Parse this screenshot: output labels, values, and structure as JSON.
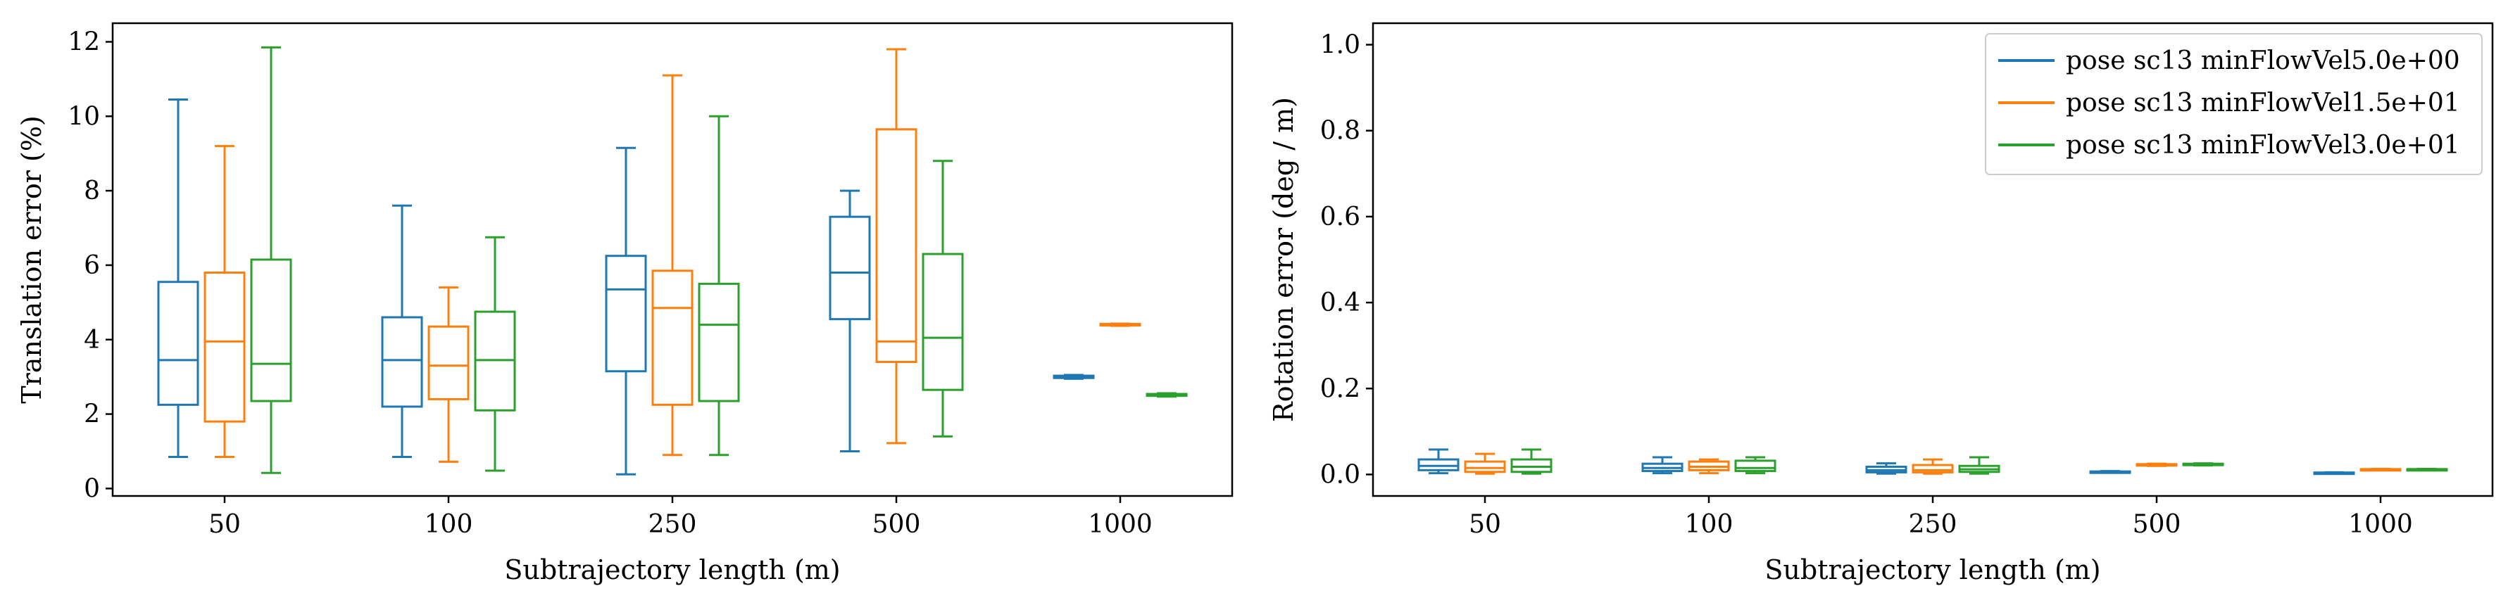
{
  "colors": {
    "series": [
      "#1f77b4",
      "#ff7f0e",
      "#2ca02c"
    ]
  },
  "chart_data": [
    {
      "type": "box",
      "xlabel": "Subtrajectory length (m)",
      "ylabel": "Translation error (%)",
      "ylim": [
        -0.2,
        12.5
      ],
      "yticks": [
        0,
        2,
        4,
        6,
        8,
        10,
        12
      ],
      "categories": [
        "50",
        "100",
        "250",
        "500",
        "1000"
      ],
      "series": [
        {
          "name": "pose sc13 minFlowVel5.0e+00",
          "boxes": [
            {
              "min": 0.85,
              "q1": 2.25,
              "median": 3.45,
              "q3": 5.55,
              "max": 10.45
            },
            {
              "min": 0.85,
              "q1": 2.2,
              "median": 3.45,
              "q3": 4.6,
              "max": 7.6
            },
            {
              "min": 0.38,
              "q1": 3.15,
              "median": 5.35,
              "q3": 6.25,
              "max": 9.15
            },
            {
              "min": 1.0,
              "q1": 4.55,
              "median": 5.8,
              "q3": 7.3,
              "max": 8.0
            },
            {
              "min": 2.95,
              "q1": 2.97,
              "median": 3.0,
              "q3": 3.03,
              "max": 3.05
            }
          ]
        },
        {
          "name": "pose sc13 minFlowVel1.5e+01",
          "boxes": [
            {
              "min": 0.85,
              "q1": 1.8,
              "median": 3.95,
              "q3": 5.8,
              "max": 9.2
            },
            {
              "min": 0.72,
              "q1": 2.4,
              "median": 3.3,
              "q3": 4.35,
              "max": 5.4
            },
            {
              "min": 0.9,
              "q1": 2.25,
              "median": 4.85,
              "q3": 5.85,
              "max": 11.1
            },
            {
              "min": 1.22,
              "q1": 3.4,
              "median": 3.95,
              "q3": 9.65,
              "max": 11.8
            },
            {
              "min": 4.37,
              "q1": 4.38,
              "median": 4.4,
              "q3": 4.42,
              "max": 4.43
            }
          ]
        },
        {
          "name": "pose sc13 minFlowVel3.0e+01",
          "boxes": [
            {
              "min": 0.42,
              "q1": 2.35,
              "median": 3.35,
              "q3": 6.15,
              "max": 11.85
            },
            {
              "min": 0.48,
              "q1": 2.1,
              "median": 3.45,
              "q3": 4.75,
              "max": 6.75
            },
            {
              "min": 0.9,
              "q1": 2.35,
              "median": 4.4,
              "q3": 5.5,
              "max": 10.0
            },
            {
              "min": 1.4,
              "q1": 2.65,
              "median": 4.05,
              "q3": 6.3,
              "max": 8.8
            },
            {
              "min": 2.47,
              "q1": 2.49,
              "median": 2.52,
              "q3": 2.54,
              "max": 2.56
            }
          ]
        }
      ],
      "grid": false
    },
    {
      "type": "box",
      "xlabel": "Subtrajectory length (m)",
      "ylabel": "Rotation error (deg / m)",
      "ylim": [
        -0.05,
        1.05
      ],
      "yticks": [
        0.0,
        0.2,
        0.4,
        0.6,
        0.8,
        1.0
      ],
      "ytick_labels": [
        "0.0",
        "0.2",
        "0.4",
        "0.6",
        "0.8",
        "1.0"
      ],
      "categories": [
        "50",
        "100",
        "250",
        "500",
        "1000"
      ],
      "legend": "top-right",
      "series": [
        {
          "name": "pose sc13 minFlowVel5.0e+00",
          "boxes": [
            {
              "min": 0.003,
              "q1": 0.01,
              "median": 0.02,
              "q3": 0.035,
              "max": 0.058
            },
            {
              "min": 0.003,
              "q1": 0.008,
              "median": 0.015,
              "q3": 0.025,
              "max": 0.04
            },
            {
              "min": 0.002,
              "q1": 0.005,
              "median": 0.01,
              "q3": 0.018,
              "max": 0.026
            },
            {
              "min": 0.004,
              "q1": 0.005,
              "median": 0.006,
              "q3": 0.007,
              "max": 0.008
            },
            {
              "min": 0.003,
              "q1": 0.0035,
              "median": 0.004,
              "q3": 0.0045,
              "max": 0.005
            }
          ]
        },
        {
          "name": "pose sc13 minFlowVel1.5e+01",
          "boxes": [
            {
              "min": 0.002,
              "q1": 0.006,
              "median": 0.015,
              "q3": 0.03,
              "max": 0.048
            },
            {
              "min": 0.003,
              "q1": 0.01,
              "median": 0.018,
              "q3": 0.03,
              "max": 0.035
            },
            {
              "min": 0.002,
              "q1": 0.005,
              "median": 0.01,
              "q3": 0.022,
              "max": 0.035
            },
            {
              "min": 0.02,
              "q1": 0.021,
              "median": 0.022,
              "q3": 0.024,
              "max": 0.025
            },
            {
              "min": 0.011,
              "q1": 0.0115,
              "median": 0.012,
              "q3": 0.0125,
              "max": 0.013
            }
          ]
        },
        {
          "name": "pose sc13 minFlowVel3.0e+01",
          "boxes": [
            {
              "min": 0.002,
              "q1": 0.006,
              "median": 0.018,
              "q3": 0.035,
              "max": 0.058
            },
            {
              "min": 0.003,
              "q1": 0.008,
              "median": 0.015,
              "q3": 0.032,
              "max": 0.04
            },
            {
              "min": 0.002,
              "q1": 0.006,
              "median": 0.012,
              "q3": 0.02,
              "max": 0.04
            },
            {
              "min": 0.021,
              "q1": 0.022,
              "median": 0.023,
              "q3": 0.025,
              "max": 0.026
            },
            {
              "min": 0.011,
              "q1": 0.0115,
              "median": 0.012,
              "q3": 0.0125,
              "max": 0.013
            }
          ]
        }
      ],
      "grid": false
    }
  ]
}
